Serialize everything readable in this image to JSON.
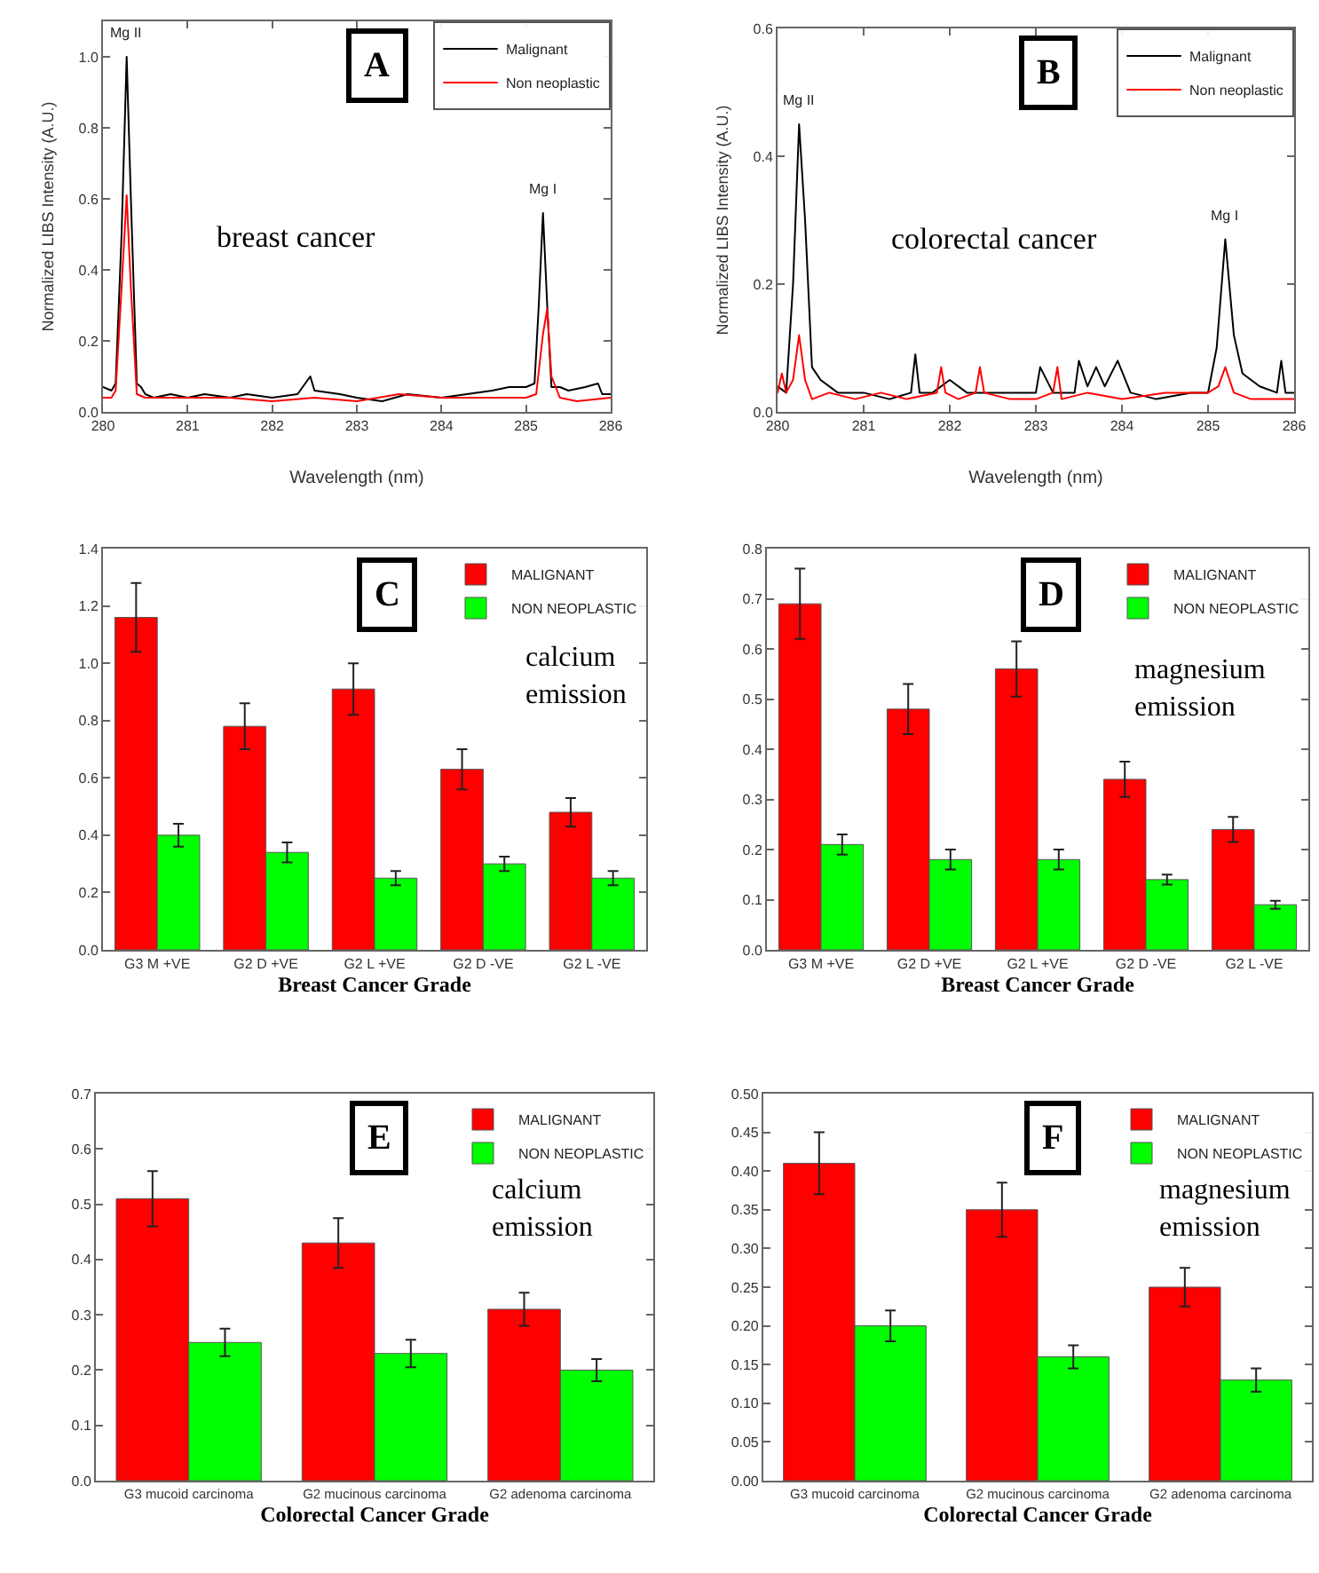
{
  "chart_data": [
    {
      "type": "line",
      "marker": "none",
      "xlabel": "Wavelength (nm)",
      "ylabel": "Normalized LIBS Intensity (A.U.)",
      "legend": "top right",
      "xlim": [
        280,
        286
      ],
      "xticks": [
        280,
        281,
        282,
        283,
        284,
        285,
        286
      ],
      "ylim": [
        0,
        1.1
      ],
      "yticks": [
        {
          "value": 0,
          "label": "0.0"
        },
        {
          "value": 0.2,
          "label": "0.2"
        },
        {
          "value": 0.4,
          "label": "0.4"
        },
        {
          "value": 0.6,
          "label": "0.6"
        },
        {
          "value": 0.8,
          "label": "0.8"
        },
        {
          "value": 1,
          "label": "1.0"
        }
      ],
      "series": [
        {
          "name": "Malignant",
          "color": "#000000",
          "x": [
            280.0,
            280.1,
            280.15,
            280.22,
            280.28,
            280.33,
            280.4,
            280.45,
            280.5,
            280.6,
            280.8,
            281.0,
            281.2,
            281.5,
            281.7,
            282.0,
            282.3,
            282.45,
            282.5,
            282.8,
            283.0,
            283.3,
            283.6,
            284.0,
            284.3,
            284.6,
            284.8,
            285.0,
            285.1,
            285.15,
            285.2,
            285.25,
            285.3,
            285.4,
            285.5,
            285.7,
            285.85,
            285.9,
            286.0
          ],
          "values": [
            0.07,
            0.06,
            0.08,
            0.5,
            1.0,
            0.6,
            0.08,
            0.07,
            0.05,
            0.04,
            0.05,
            0.04,
            0.05,
            0.04,
            0.05,
            0.04,
            0.05,
            0.1,
            0.06,
            0.05,
            0.04,
            0.03,
            0.05,
            0.04,
            0.05,
            0.06,
            0.07,
            0.07,
            0.08,
            0.3,
            0.56,
            0.3,
            0.07,
            0.07,
            0.06,
            0.07,
            0.08,
            0.05,
            0.05
          ]
        },
        {
          "name": "Non neoplastic",
          "color": "#ff0000",
          "x": [
            280.0,
            280.1,
            280.15,
            280.22,
            280.28,
            280.33,
            280.4,
            280.5,
            281.0,
            281.5,
            282.0,
            282.5,
            283.0,
            283.5,
            284.0,
            284.5,
            285.0,
            285.12,
            285.2,
            285.25,
            285.3,
            285.4,
            285.6,
            286.0
          ],
          "values": [
            0.04,
            0.04,
            0.06,
            0.35,
            0.61,
            0.35,
            0.05,
            0.04,
            0.04,
            0.04,
            0.03,
            0.04,
            0.03,
            0.05,
            0.04,
            0.04,
            0.04,
            0.05,
            0.22,
            0.29,
            0.1,
            0.04,
            0.03,
            0.04
          ]
        }
      ],
      "annotations": [
        "A",
        {
          "text": "Mg II",
          "x": 280.28,
          "y": 1.0
        },
        {
          "text": "Mg I",
          "x": 285.2,
          "y": 0.56
        },
        "breast cancer"
      ]
    },
    {
      "type": "line",
      "marker": "none",
      "xlabel": "Wavelength (nm)",
      "ylabel": "Normalized LIBS Intensity (A.U.)",
      "legend": "top right",
      "xlim": [
        280,
        286
      ],
      "xticks": [
        280,
        281,
        282,
        283,
        284,
        285,
        286
      ],
      "ylim": [
        0,
        0.6
      ],
      "yticks": [
        {
          "value": 0,
          "label": "0.0"
        },
        {
          "value": 0.2,
          "label": "0.2"
        },
        {
          "value": 0.4,
          "label": "0.4"
        },
        {
          "value": 0.6,
          "label": "0.6"
        }
      ],
      "series": [
        {
          "name": "Malignant",
          "color": "#000000",
          "x": [
            280.0,
            280.1,
            280.18,
            280.25,
            280.32,
            280.4,
            280.5,
            280.7,
            281.0,
            281.3,
            281.55,
            281.6,
            281.65,
            281.8,
            282.0,
            282.2,
            282.5,
            282.8,
            283.0,
            283.05,
            283.2,
            283.45,
            283.5,
            283.6,
            283.7,
            283.8,
            283.95,
            284.1,
            284.4,
            284.8,
            285.0,
            285.1,
            285.2,
            285.3,
            285.4,
            285.6,
            285.8,
            285.85,
            285.9,
            286.0
          ],
          "values": [
            0.04,
            0.03,
            0.2,
            0.45,
            0.3,
            0.07,
            0.05,
            0.03,
            0.03,
            0.02,
            0.03,
            0.09,
            0.03,
            0.03,
            0.05,
            0.03,
            0.03,
            0.03,
            0.03,
            0.07,
            0.03,
            0.03,
            0.08,
            0.04,
            0.07,
            0.04,
            0.08,
            0.03,
            0.02,
            0.03,
            0.03,
            0.1,
            0.27,
            0.12,
            0.06,
            0.04,
            0.03,
            0.08,
            0.03,
            0.03
          ]
        },
        {
          "name": "Non neoplastic",
          "color": "#ff0000",
          "x": [
            280.0,
            280.05,
            280.1,
            280.18,
            280.25,
            280.32,
            280.4,
            280.6,
            280.9,
            281.2,
            281.5,
            281.85,
            281.9,
            281.95,
            282.1,
            282.3,
            282.35,
            282.4,
            282.7,
            283.0,
            283.2,
            283.25,
            283.3,
            283.6,
            284.0,
            284.5,
            285.0,
            285.12,
            285.2,
            285.3,
            285.5,
            286.0
          ],
          "values": [
            0.03,
            0.06,
            0.03,
            0.05,
            0.12,
            0.05,
            0.02,
            0.03,
            0.02,
            0.03,
            0.02,
            0.03,
            0.07,
            0.03,
            0.02,
            0.03,
            0.07,
            0.03,
            0.02,
            0.02,
            0.03,
            0.07,
            0.02,
            0.03,
            0.02,
            0.03,
            0.03,
            0.04,
            0.07,
            0.03,
            0.02,
            0.02
          ]
        }
      ],
      "annotations": [
        "B",
        {
          "text": "Mg II",
          "x": 280.25,
          "y": 0.45
        },
        {
          "text": "Mg I",
          "x": 285.2,
          "y": 0.27
        },
        "colorectal cancer"
      ]
    },
    {
      "type": "bar",
      "xlabel": "Breast Cancer Grade",
      "legend": "top right",
      "categories": [
        "G3 M +VE",
        "G2 D +VE",
        "G2 L +VE",
        "G2 D -VE",
        "G2 L -VE"
      ],
      "ylim": [
        0,
        1.4
      ],
      "yticks": [
        {
          "value": 0,
          "label": "0.0"
        },
        {
          "value": 0.2,
          "label": "0.2"
        },
        {
          "value": 0.4,
          "label": "0.4"
        },
        {
          "value": 0.6,
          "label": "0.6"
        },
        {
          "value": 0.8,
          "label": "0.8"
        },
        {
          "value": 1,
          "label": "1.0"
        },
        {
          "value": 1.2,
          "label": "1.2"
        },
        {
          "value": 1.4,
          "label": "1.4"
        }
      ],
      "series": [
        {
          "name": "MALIGNANT",
          "color": "#ff0000",
          "values": [
            1.16,
            0.78,
            0.91,
            0.63,
            0.48
          ],
          "errors": [
            0.12,
            0.08,
            0.09,
            0.07,
            0.05
          ]
        },
        {
          "name": "NON NEOPLASTIC",
          "color": "#00ff00",
          "values": [
            0.4,
            0.34,
            0.25,
            0.3,
            0.25
          ],
          "errors": [
            0.04,
            0.035,
            0.025,
            0.025,
            0.025
          ]
        }
      ],
      "annotations": [
        "C",
        "calcium emission"
      ]
    },
    {
      "type": "bar",
      "xlabel": "Breast Cancer Grade",
      "legend": "top right",
      "categories": [
        "G3 M +VE",
        "G2 D +VE",
        "G2 L +VE",
        "G2 D -VE",
        "G2 L -VE"
      ],
      "ylim": [
        0,
        0.8
      ],
      "yticks": [
        {
          "value": 0,
          "label": "0.0"
        },
        {
          "value": 0.1,
          "label": "0.1"
        },
        {
          "value": 0.2,
          "label": "0.2"
        },
        {
          "value": 0.3,
          "label": "0.3"
        },
        {
          "value": 0.4,
          "label": "0.4"
        },
        {
          "value": 0.5,
          "label": "0.5"
        },
        {
          "value": 0.6,
          "label": "0.6"
        },
        {
          "value": 0.7,
          "label": "0.7"
        },
        {
          "value": 0.8,
          "label": "0.8"
        }
      ],
      "series": [
        {
          "name": "MALIGNANT",
          "color": "#ff0000",
          "values": [
            0.69,
            0.48,
            0.56,
            0.34,
            0.24
          ],
          "errors": [
            0.07,
            0.05,
            0.055,
            0.035,
            0.025
          ]
        },
        {
          "name": "NON NEOPLASTIC",
          "color": "#00ff00",
          "values": [
            0.21,
            0.18,
            0.18,
            0.14,
            0.09
          ],
          "errors": [
            0.02,
            0.02,
            0.02,
            0.01,
            0.008
          ]
        }
      ],
      "annotations": [
        "D",
        "magnesium emission"
      ]
    },
    {
      "type": "bar",
      "xlabel": "Colorectal Cancer Grade",
      "legend": "top right",
      "categories": [
        "G3 mucoid carcinoma",
        "G2 mucinous carcinoma",
        "G2 adenoma carcinoma"
      ],
      "ylim": [
        0,
        0.7
      ],
      "yticks": [
        {
          "value": 0,
          "label": "0.0"
        },
        {
          "value": 0.1,
          "label": "0.1"
        },
        {
          "value": 0.2,
          "label": "0.2"
        },
        {
          "value": 0.3,
          "label": "0.3"
        },
        {
          "value": 0.4,
          "label": "0.4"
        },
        {
          "value": 0.5,
          "label": "0.5"
        },
        {
          "value": 0.6,
          "label": "0.6"
        },
        {
          "value": 0.7,
          "label": "0.7"
        }
      ],
      "series": [
        {
          "name": "MALIGNANT",
          "color": "#ff0000",
          "values": [
            0.51,
            0.43,
            0.31
          ],
          "errors": [
            0.05,
            0.045,
            0.03
          ]
        },
        {
          "name": "NON NEOPLASTIC",
          "color": "#00ff00",
          "values": [
            0.25,
            0.23,
            0.2
          ],
          "errors": [
            0.025,
            0.025,
            0.02
          ]
        }
      ],
      "annotations": [
        "E",
        "calcium emission"
      ]
    },
    {
      "type": "bar",
      "xlabel": "Colorectal Cancer Grade",
      "legend": "top right",
      "categories": [
        "G3 mucoid carcinoma",
        "G2 mucinous carcinoma",
        "G2 adenoma carcinoma"
      ],
      "ylim": [
        0,
        0.5
      ],
      "yticks": [
        {
          "value": 0,
          "label": "0.00"
        },
        {
          "value": 0.05,
          "label": "0.05"
        },
        {
          "value": 0.1,
          "label": "0.10"
        },
        {
          "value": 0.15,
          "label": "0.15"
        },
        {
          "value": 0.2,
          "label": "0.20"
        },
        {
          "value": 0.25,
          "label": "0.25"
        },
        {
          "value": 0.3,
          "label": "0.30"
        },
        {
          "value": 0.35,
          "label": "0.35"
        },
        {
          "value": 0.4,
          "label": "0.40"
        },
        {
          "value": 0.45,
          "label": "0.45"
        },
        {
          "value": 0.5,
          "label": "0.50"
        }
      ],
      "series": [
        {
          "name": "MALIGNANT",
          "color": "#ff0000",
          "values": [
            0.41,
            0.35,
            0.25
          ],
          "errors": [
            0.04,
            0.035,
            0.025
          ]
        },
        {
          "name": "NON NEOPLASTIC",
          "color": "#00ff00",
          "values": [
            0.2,
            0.16,
            0.13
          ],
          "errors": [
            0.02,
            0.015,
            0.015
          ]
        }
      ],
      "annotations": [
        "F",
        "magnesium emission"
      ]
    }
  ]
}
